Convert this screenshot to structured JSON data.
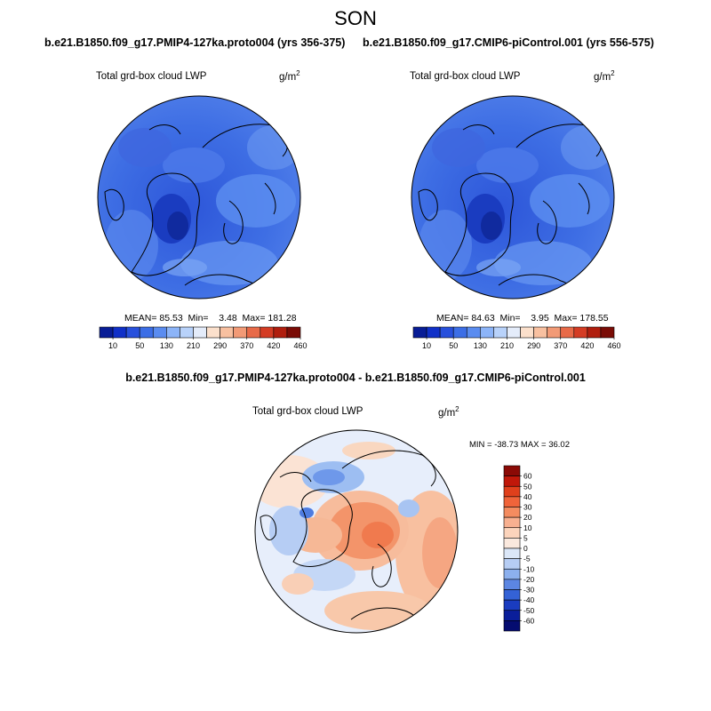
{
  "season": "SON",
  "panels": [
    {
      "run_title": "b.e21.B1850.f09_g17.PMIP4-127ka.proto004 (yrs 356-375)",
      "var_title": "Total grd-box cloud LWP",
      "units": "g/m",
      "units_exp": "2",
      "stats": {
        "mean_label": "MEAN=",
        "mean": "85.53",
        "min_label": "Min=",
        "min": "3.48",
        "max_label": "Max=",
        "max": "181.28"
      }
    },
    {
      "run_title": "b.e21.B1850.f09_g17.CMIP6-piControl.001 (yrs 556-575)",
      "var_title": "Total grd-box cloud LWP",
      "units": "g/m",
      "units_exp": "2",
      "stats": {
        "mean_label": "MEAN=",
        "mean": "84.63",
        "min_label": "Min=",
        "min": "3.95",
        "max_label": "Max=",
        "max": "178.55"
      }
    }
  ],
  "diff": {
    "title": "b.e21.B1850.f09_g17.PMIP4-127ka.proto004 - b.e21.B1850.f09_g17.CMIP6-piControl.001",
    "var_title": "Total grd-box cloud LWP",
    "units": "g/m",
    "units_exp": "2",
    "minmax": "MIN = -38.73 MAX =  36.02"
  },
  "chart_data": [
    {
      "type": "heatmap",
      "projection": "north-polar-stereographic",
      "title": "Total grd-box cloud LWP",
      "units": "g/m^2",
      "mean": 85.53,
      "min": 3.48,
      "max": 181.28,
      "colorbar": {
        "orientation": "horizontal",
        "tick_labels": [
          "10",
          "50",
          "130",
          "210",
          "290",
          "370",
          "420",
          "460"
        ],
        "colors": [
          "#081d96",
          "#1030c8",
          "#2850dc",
          "#3c6ee6",
          "#5a8cf0",
          "#8cb4f8",
          "#b8d2fa",
          "#e4ecfa",
          "#fbe0cc",
          "#f8c0a0",
          "#f29a76",
          "#e86a48",
          "#d43c24",
          "#b01e0e",
          "#7a0c06"
        ]
      }
    },
    {
      "type": "heatmap",
      "projection": "north-polar-stereographic",
      "title": "Total grd-box cloud LWP",
      "units": "g/m^2",
      "mean": 84.63,
      "min": 3.95,
      "max": 178.55,
      "colorbar": {
        "orientation": "horizontal",
        "tick_labels": [
          "10",
          "50",
          "130",
          "210",
          "290",
          "370",
          "420",
          "460"
        ],
        "colors": [
          "#081d96",
          "#1030c8",
          "#2850dc",
          "#3c6ee6",
          "#5a8cf0",
          "#8cb4f8",
          "#b8d2fa",
          "#e4ecfa",
          "#fbe0cc",
          "#f8c0a0",
          "#f29a76",
          "#e86a48",
          "#d43c24",
          "#b01e0e",
          "#7a0c06"
        ]
      }
    },
    {
      "type": "heatmap",
      "projection": "north-polar-stereographic",
      "title": "Total grd-box cloud LWP",
      "units": "g/m^2",
      "min": -38.73,
      "max": 36.02,
      "colorbar": {
        "orientation": "vertical",
        "tick_labels": [
          "60",
          "50",
          "40",
          "30",
          "20",
          "10",
          "5",
          "0",
          "-5",
          "-10",
          "-20",
          "-30",
          "-40",
          "-50",
          "-60"
        ],
        "colors": [
          "#8b0a06",
          "#c0180a",
          "#e0401c",
          "#f0643a",
          "#f48c60",
          "#f8b090",
          "#fcd4bc",
          "#fbe9de",
          "#dbe7f8",
          "#b6cdf4",
          "#8cb0ee",
          "#5c86e2",
          "#3462d6",
          "#1a3cc0",
          "#0a1e9a",
          "#050c70"
        ]
      }
    }
  ]
}
